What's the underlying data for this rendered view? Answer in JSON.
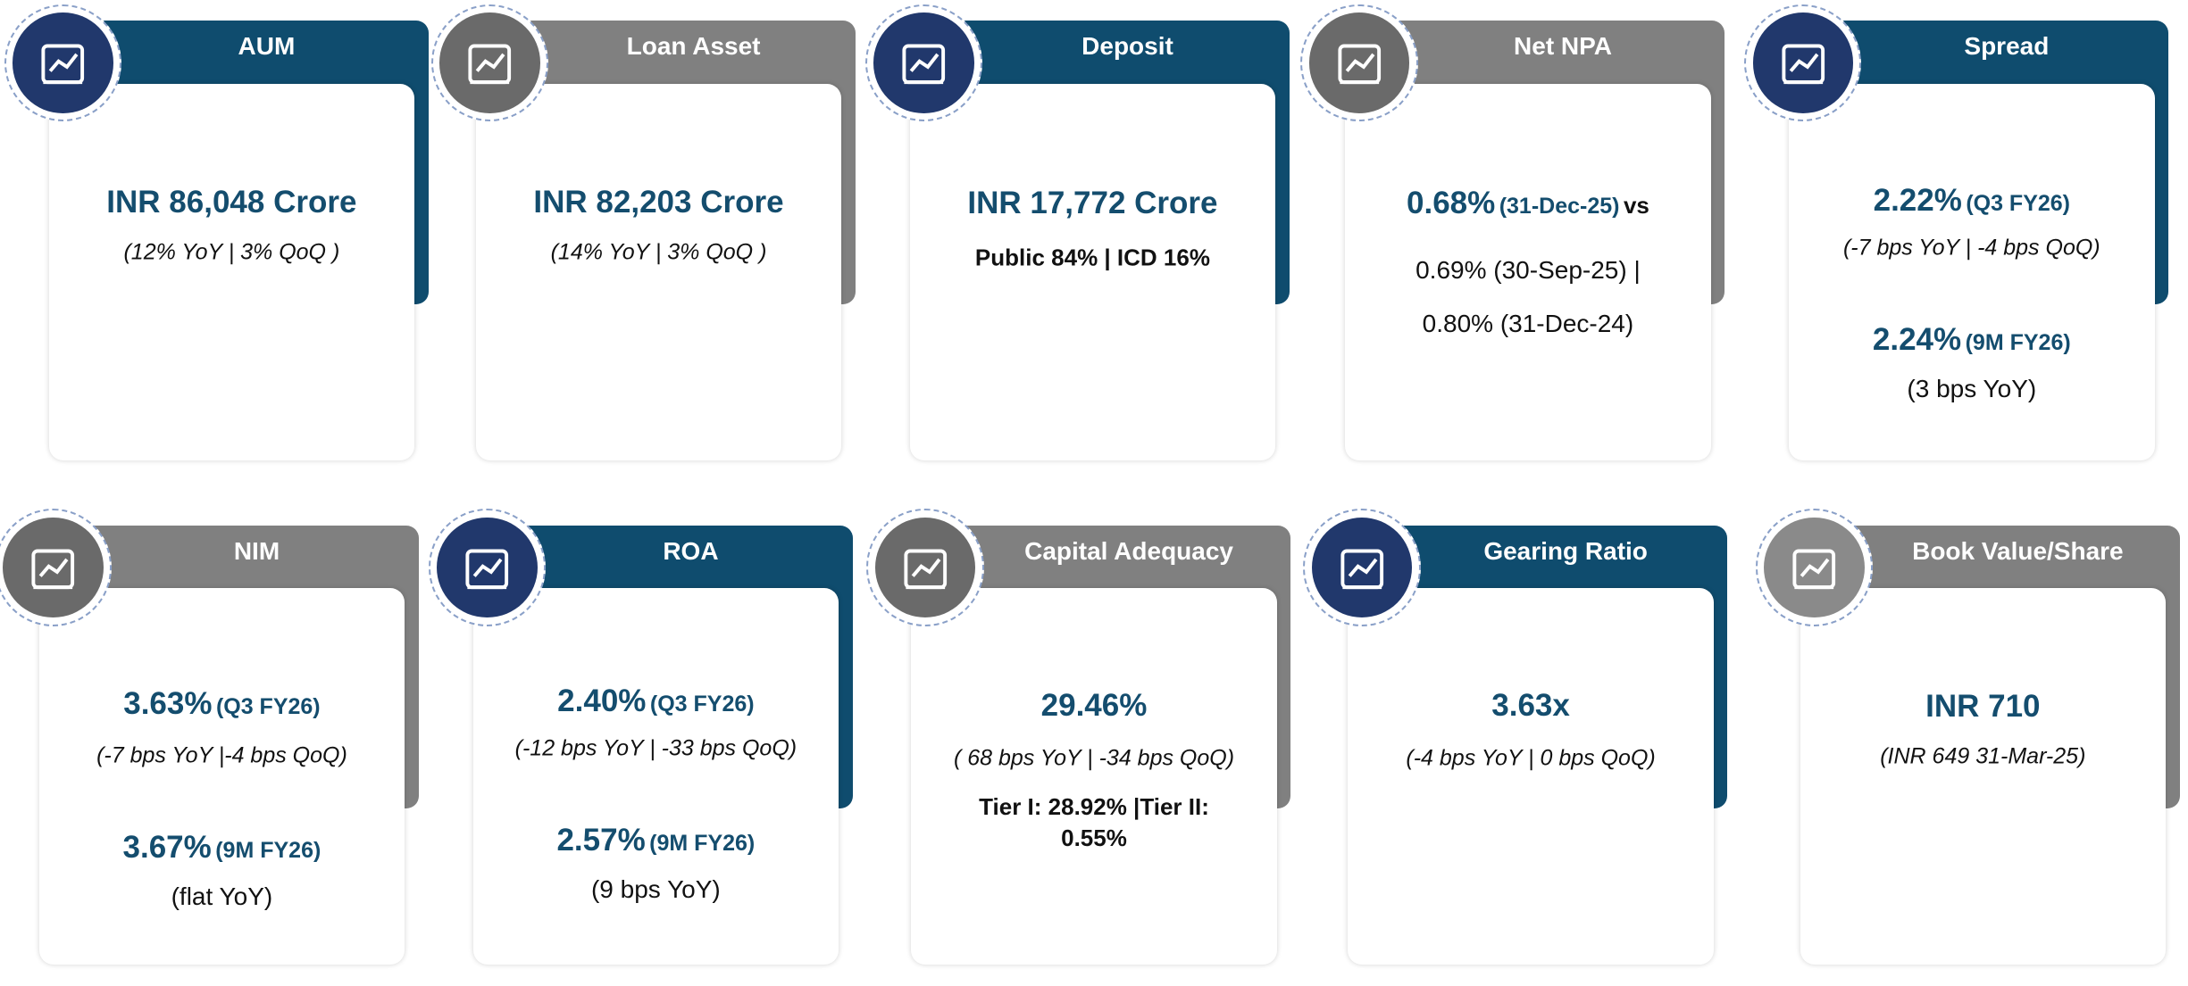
{
  "cards": [
    {
      "title": "AUM",
      "lines": [
        [
          "INR  86,048 Crore"
        ],
        [
          "(12% YoY | 3% QoQ )"
        ]
      ]
    },
    {
      "title": "Loan Asset",
      "lines": [
        [
          "INR  82,203 Crore"
        ],
        [
          "(14% YoY | 3% QoQ )"
        ]
      ]
    },
    {
      "title": "Deposit",
      "lines": [
        [
          "INR  17,772 Crore"
        ],
        [
          "Public 84% | ICD 16%"
        ]
      ]
    },
    {
      "title": "Net NPA",
      "lines": [
        [
          "0.68%",
          "(31-Dec-25)",
          "vs"
        ],
        [
          "0.69% (30-Sep-25) |"
        ],
        [
          "0.80% (31-Dec-24)"
        ]
      ]
    },
    {
      "title": "Spread",
      "lines": [
        [
          "2.22%",
          "(Q3 FY26)"
        ],
        [
          "(-7 bps YoY | -4 bps QoQ)"
        ],
        [
          "2.24%",
          "(9M FY26)"
        ],
        [
          "(3 bps YoY)"
        ]
      ]
    },
    {
      "title": "NIM",
      "lines": [
        [
          "3.63%",
          "(Q3 FY26)"
        ],
        [
          "(-7 bps YoY |-4 bps QoQ)"
        ],
        [
          "3.67%",
          "(9M FY26)"
        ],
        [
          "(flat YoY)"
        ]
      ]
    },
    {
      "title": "ROA",
      "lines": [
        [
          "2.40%",
          "(Q3 FY26)"
        ],
        [
          "(-12 bps YoY | -33 bps QoQ)"
        ],
        [
          "2.57%",
          "(9M FY26)"
        ],
        [
          "(9 bps YoY)"
        ]
      ]
    },
    {
      "title": "Capital Adequacy",
      "lines": [
        [
          "29.46%"
        ],
        [
          "( 68 bps YoY | -34 bps QoQ)"
        ],
        [
          "Tier I:  28.92% |Tier II: 0.55%"
        ]
      ]
    },
    {
      "title": "Gearing Ratio",
      "lines": [
        [
          "3.63x"
        ],
        [
          "(-4 bps YoY | 0 bps QoQ)"
        ]
      ]
    },
    {
      "title": "Book Value/Share",
      "lines": [
        [
          "INR 710"
        ],
        [
          "(INR 649 31-Mar-25)"
        ]
      ]
    }
  ]
}
